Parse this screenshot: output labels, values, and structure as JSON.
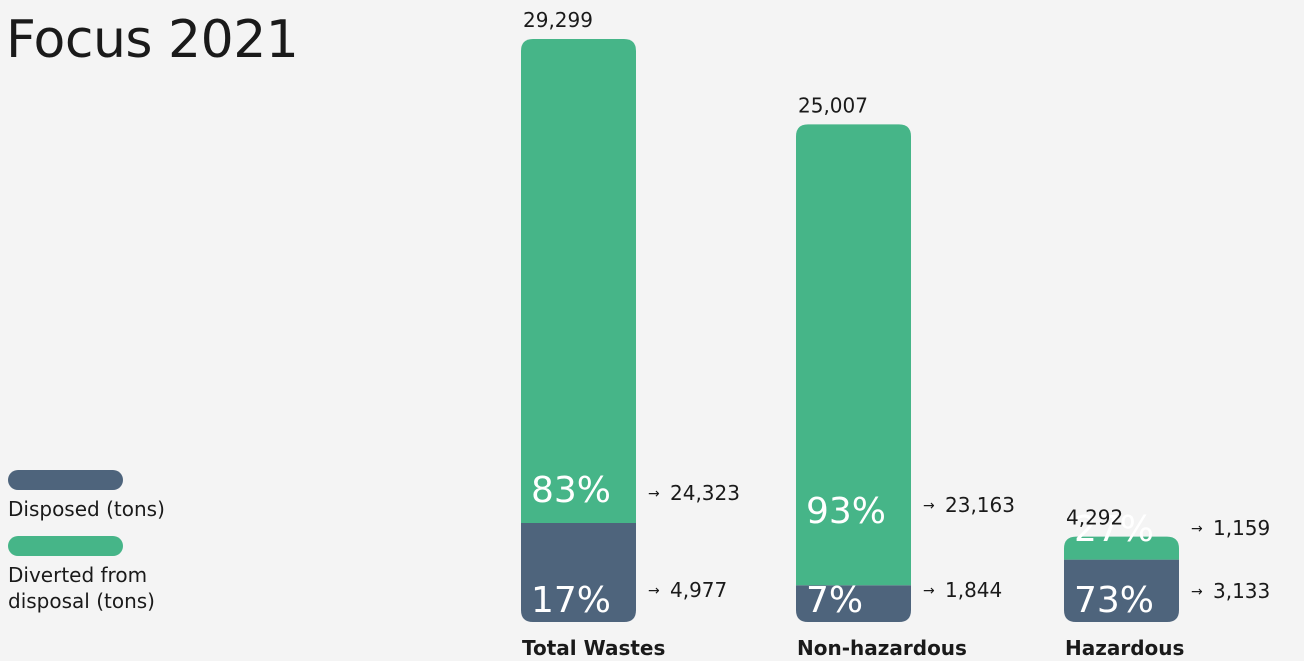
{
  "page_title": "Focus 2021",
  "legend": [
    {
      "label": "Disposed (tons)",
      "color": "#4e647c"
    },
    {
      "label": "Diverted from disposal (tons)",
      "color": "#46b588"
    }
  ],
  "chart_data": {
    "type": "bar",
    "stacked": true,
    "categories": [
      "Total Wastes",
      "Non-hazardous",
      "Hazardous"
    ],
    "totals": [
      "29,299",
      "25,007",
      "4,292"
    ],
    "series": [
      {
        "name": "Disposed (tons)",
        "color": "#4e647c",
        "values": [
          4977,
          1844,
          3133
        ],
        "value_labels": [
          "4,977",
          "1,844",
          "3,133"
        ],
        "percent_labels": [
          "17%",
          "7%",
          "73%"
        ]
      },
      {
        "name": "Diverted from disposal (tons)",
        "color": "#46b588",
        "values": [
          24323,
          23163,
          1159
        ],
        "value_labels": [
          "24,323",
          "23,163",
          "1,159"
        ],
        "percent_labels": [
          "83%",
          "93%",
          "27%"
        ]
      }
    ],
    "arrow": "→",
    "ylim": [
      0,
      29299
    ],
    "grid": false,
    "legend_position": "left"
  }
}
